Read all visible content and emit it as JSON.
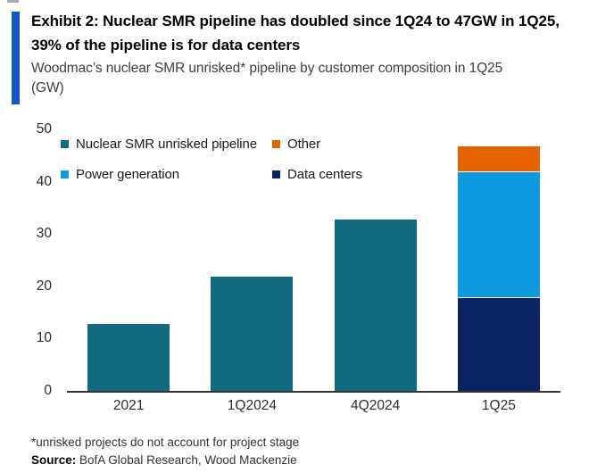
{
  "header": {
    "title": "Exhibit 2: Nuclear SMR pipeline has doubled since 1Q24 to 47GW in 1Q25, 39% of the pipeline is for data centers",
    "subtitle": "Woodmac’s nuclear SMR unrisked* pipeline by customer composition in 1Q25 (GW)",
    "accent_color": "#1456C9"
  },
  "chart_data": {
    "type": "bar",
    "stacked": true,
    "title": "Woodmac's nuclear SMR unrisked* pipeline by customer composition in 1Q25 (GW)",
    "categories": [
      "2021",
      "1Q2024",
      "4Q2024",
      "1Q25"
    ],
    "series": [
      {
        "name": "Nuclear SMR unrisked pipeline",
        "color": "#116B7E",
        "values": [
          13,
          22,
          33,
          0
        ]
      },
      {
        "name": "Data centers",
        "color": "#0B2264",
        "values": [
          0,
          0,
          0,
          18
        ]
      },
      {
        "name": "Power generation",
        "color": "#0E9AE0",
        "values": [
          0,
          0,
          0,
          24
        ]
      },
      {
        "name": "Other",
        "color": "#E56201",
        "values": [
          0,
          0,
          0,
          5
        ]
      }
    ],
    "totals": [
      13,
      22,
      33,
      47
    ],
    "xlabel": "",
    "ylabel": "",
    "ylim": [
      0,
      50
    ],
    "yticks": [
      0,
      10,
      20,
      30,
      40,
      50
    ],
    "grid": false,
    "legend_position": "top-left-inside",
    "legend": [
      {
        "label": "Nuclear SMR unrisked pipeline",
        "color": "#116B7E"
      },
      {
        "label": "Other",
        "color": "#E56201"
      },
      {
        "label": "Power generation",
        "color": "#0E9AE0"
      },
      {
        "label": "Data centers",
        "color": "#0B2264"
      }
    ]
  },
  "footer": {
    "footnote": "*unrisked projects do not account for project stage",
    "source_label": "Source:",
    "source_text": " BofA Global Research, Wood Mackenzie"
  }
}
